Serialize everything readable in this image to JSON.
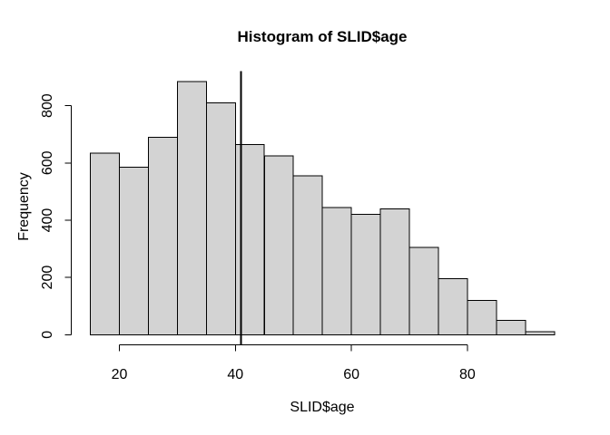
{
  "chart_data": {
    "type": "bar",
    "kind": "histogram",
    "title": "Histogram of SLID$age",
    "xlabel": "SLID$age",
    "ylabel": "Frequency",
    "bin_start": 15,
    "bin_width": 5,
    "bin_edges": [
      15,
      20,
      25,
      30,
      35,
      40,
      45,
      50,
      55,
      60,
      65,
      70,
      75,
      80,
      85,
      90,
      95
    ],
    "categories": [
      "15-20",
      "20-25",
      "25-30",
      "30-35",
      "35-40",
      "40-45",
      "45-50",
      "50-55",
      "55-60",
      "60-65",
      "65-70",
      "70-75",
      "75-80",
      "80-85",
      "85-90",
      "90-95"
    ],
    "values": [
      635,
      585,
      690,
      885,
      810,
      665,
      625,
      555,
      445,
      420,
      440,
      305,
      195,
      120,
      50,
      10
    ],
    "x_ticks": [
      20,
      40,
      60,
      80
    ],
    "y_ticks": [
      0,
      200,
      400,
      600,
      800
    ],
    "xlim": [
      15,
      95
    ],
    "ylim": [
      0,
      885
    ],
    "vline_x": 41,
    "grid": false,
    "legend": "none",
    "colors": {
      "bar_fill": "#d3d3d3",
      "bar_stroke": "#000000",
      "axis": "#000000",
      "vline": "#000000",
      "text": "#000000",
      "background": "#ffffff"
    }
  }
}
